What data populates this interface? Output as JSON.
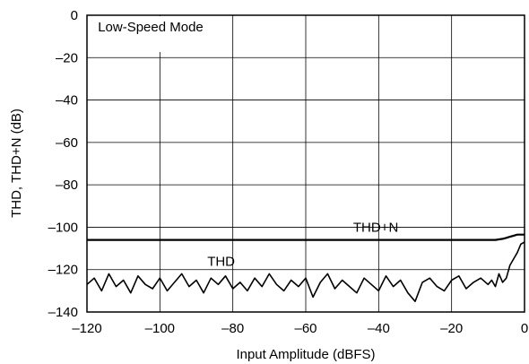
{
  "chart_data": {
    "type": "line",
    "title": "",
    "xlabel": "Input Amplitude (dBFS)",
    "ylabel": "THD, THD+N (dB)",
    "xlim": [
      -120,
      0
    ],
    "ylim": [
      -140,
      0
    ],
    "xticks": [
      -120,
      -100,
      -80,
      -60,
      -40,
      -20,
      0
    ],
    "yticks": [
      0,
      -20,
      -40,
      -60,
      -80,
      -100,
      -120,
      -140
    ],
    "xtick_labels": [
      "–120",
      "–100",
      "–80",
      "–60",
      "–40",
      "–20",
      "0"
    ],
    "ytick_labels": [
      "0",
      "–20",
      "–40",
      "–60",
      "–80",
      "–100",
      "–120",
      "–140"
    ],
    "grid": true,
    "legend": "none",
    "annotations": [
      {
        "text": "Low-Speed Mode",
        "x": -117,
        "y": -5.5
      },
      {
        "text": "THD+N",
        "x": -47,
        "y": -100
      },
      {
        "text": "THD",
        "x": -87,
        "y": -116
      }
    ],
    "series": [
      {
        "label_ref": "THD+N",
        "color": "#000000",
        "x": [
          -120,
          -110,
          -100,
          -90,
          -80,
          -70,
          -60,
          -50,
          -40,
          -30,
          -20,
          -10,
          -8,
          -6,
          -5,
          -4,
          -3,
          -2,
          -1,
          0
        ],
        "y": [
          -106,
          -106,
          -106,
          -106,
          -106,
          -106,
          -106,
          -106,
          -106,
          -106,
          -106,
          -106,
          -106,
          -105.5,
          -105,
          -104.5,
          -104,
          -103.5,
          -103.5,
          -103.5
        ]
      },
      {
        "label_ref": "THD",
        "color": "#000000",
        "x": [
          -120,
          -118,
          -116,
          -114,
          -112,
          -110,
          -108,
          -106,
          -104,
          -102,
          -100,
          -98,
          -96,
          -94,
          -92,
          -90,
          -88,
          -86,
          -84,
          -82,
          -80,
          -78,
          -76,
          -74,
          -72,
          -70,
          -68,
          -66,
          -64,
          -62,
          -60,
          -58,
          -56,
          -54,
          -52,
          -50,
          -48,
          -46,
          -44,
          -42,
          -40,
          -38,
          -36,
          -34,
          -32,
          -30,
          -28,
          -26,
          -24,
          -22,
          -20,
          -18,
          -16,
          -14,
          -12,
          -10,
          -9,
          -8,
          -7,
          -6,
          -5,
          -4,
          -3,
          -2,
          -1,
          0
        ],
        "y": [
          -127,
          -124,
          -130,
          -122,
          -128,
          -125,
          -131,
          -123,
          -127,
          -129,
          -124,
          -130,
          -126,
          -122,
          -128,
          -125,
          -131,
          -124,
          -127,
          -123,
          -129,
          -126,
          -130,
          -124,
          -128,
          -122,
          -127,
          -130,
          -125,
          -128,
          -124,
          -133,
          -126,
          -122,
          -129,
          -125,
          -128,
          -131,
          -124,
          -127,
          -130,
          -123,
          -128,
          -125,
          -131,
          -135,
          -126,
          -124,
          -128,
          -130,
          -125,
          -123,
          -129,
          -126,
          -124,
          -127,
          -125,
          -128,
          -122,
          -126,
          -124,
          -118,
          -115,
          -112,
          -108,
          -107
        ]
      }
    ]
  }
}
